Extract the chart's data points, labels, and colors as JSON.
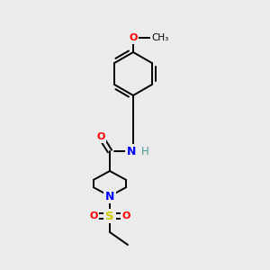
{
  "background_color": "#ebebeb",
  "bond_color": "#000000",
  "atom_colors": {
    "O": "#ff0000",
    "N": "#0000ff",
    "S": "#cccc00",
    "H": "#4d9999",
    "C": "#000000"
  },
  "figsize": [
    3.0,
    3.0
  ],
  "dpi": 100
}
